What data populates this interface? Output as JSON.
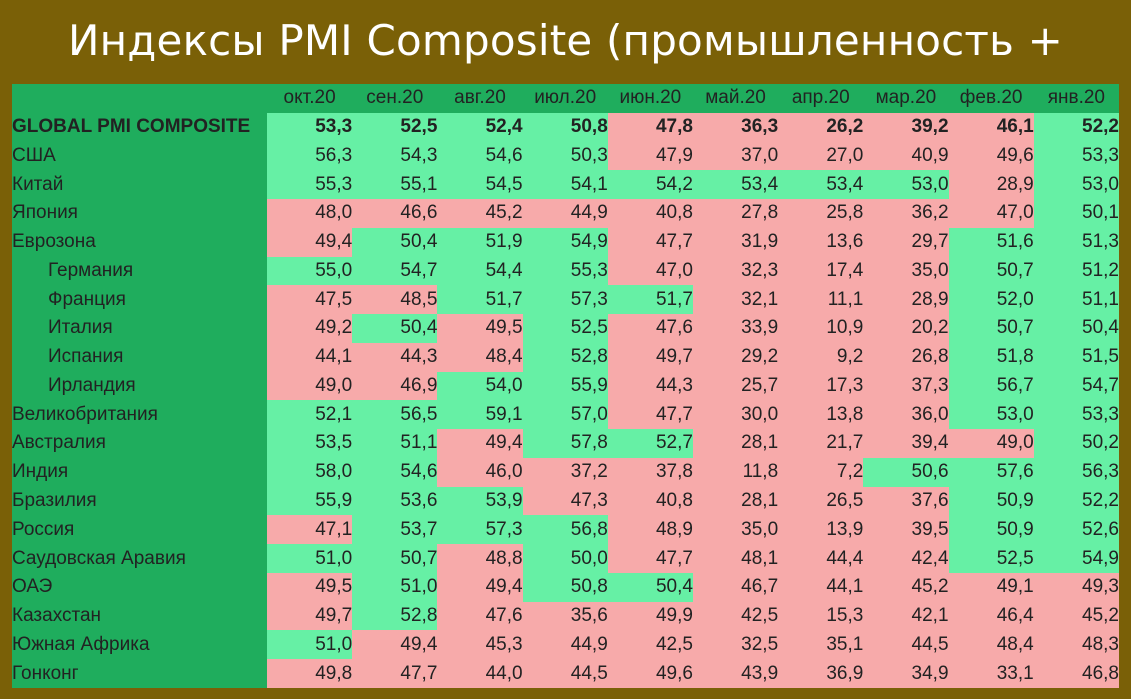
{
  "title": "Индексы PMI Composite (промышленность + услуги)",
  "colors": {
    "frame": "#7a6007",
    "header_green": "#1fad5d",
    "above_50": "#66f0a5",
    "below_50": "#f7aaaa",
    "title_text": "#ffffff"
  },
  "chart_data": {
    "type": "table",
    "title": "Индексы PMI Composite (промышленность + услуги)",
    "columns": [
      "окт.20",
      "сен.20",
      "авг.20",
      "июл.20",
      "июн.20",
      "май.20",
      "апр.20",
      "мар.20",
      "фев.20",
      "янв.20"
    ],
    "threshold": 50,
    "rows": [
      {
        "name": "GLOBAL PMI COMPOSITE",
        "indent": false,
        "bold": true,
        "values": [
          "53,3",
          "52,5",
          "52,4",
          "50,8",
          "47,8",
          "36,3",
          "26,2",
          "39,2",
          "46,1",
          "52,2"
        ]
      },
      {
        "name": "США",
        "indent": false,
        "bold": false,
        "values": [
          "56,3",
          "54,3",
          "54,6",
          "50,3",
          "47,9",
          "37,0",
          "27,0",
          "40,9",
          "49,6",
          "53,3"
        ]
      },
      {
        "name": "Китай",
        "indent": false,
        "bold": false,
        "values": [
          "55,3",
          "55,1",
          "54,5",
          "54,1",
          "54,2",
          "53,4",
          "53,4",
          "53,0",
          "28,9",
          "53,0"
        ]
      },
      {
        "name": "Япония",
        "indent": false,
        "bold": false,
        "values": [
          "48,0",
          "46,6",
          "45,2",
          "44,9",
          "40,8",
          "27,8",
          "25,8",
          "36,2",
          "47,0",
          "50,1"
        ]
      },
      {
        "name": "Еврозона",
        "indent": false,
        "bold": false,
        "values": [
          "49,4",
          "50,4",
          "51,9",
          "54,9",
          "47,7",
          "31,9",
          "13,6",
          "29,7",
          "51,6",
          "51,3"
        ]
      },
      {
        "name": "Германия",
        "indent": true,
        "bold": false,
        "values": [
          "55,0",
          "54,7",
          "54,4",
          "55,3",
          "47,0",
          "32,3",
          "17,4",
          "35,0",
          "50,7",
          "51,2"
        ]
      },
      {
        "name": "Франция",
        "indent": true,
        "bold": false,
        "values": [
          "47,5",
          "48,5",
          "51,7",
          "57,3",
          "51,7",
          "32,1",
          "11,1",
          "28,9",
          "52,0",
          "51,1"
        ]
      },
      {
        "name": "Италия",
        "indent": true,
        "bold": false,
        "values": [
          "49,2",
          "50,4",
          "49,5",
          "52,5",
          "47,6",
          "33,9",
          "10,9",
          "20,2",
          "50,7",
          "50,4"
        ]
      },
      {
        "name": "Испания",
        "indent": true,
        "bold": false,
        "values": [
          "44,1",
          "44,3",
          "48,4",
          "52,8",
          "49,7",
          "29,2",
          "9,2",
          "26,8",
          "51,8",
          "51,5"
        ]
      },
      {
        "name": "Ирландия",
        "indent": true,
        "bold": false,
        "values": [
          "49,0",
          "46,9",
          "54,0",
          "55,9",
          "44,3",
          "25,7",
          "17,3",
          "37,3",
          "56,7",
          "54,7"
        ]
      },
      {
        "name": "Великобритания",
        "indent": false,
        "bold": false,
        "values": [
          "52,1",
          "56,5",
          "59,1",
          "57,0",
          "47,7",
          "30,0",
          "13,8",
          "36,0",
          "53,0",
          "53,3"
        ]
      },
      {
        "name": "Австралия",
        "indent": false,
        "bold": false,
        "values": [
          "53,5",
          "51,1",
          "49,4",
          "57,8",
          "52,7",
          "28,1",
          "21,7",
          "39,4",
          "49,0",
          "50,2"
        ]
      },
      {
        "name": "Индия",
        "indent": false,
        "bold": false,
        "values": [
          "58,0",
          "54,6",
          "46,0",
          "37,2",
          "37,8",
          "11,8",
          "7,2",
          "50,6",
          "57,6",
          "56,3"
        ]
      },
      {
        "name": "Бразилия",
        "indent": false,
        "bold": false,
        "values": [
          "55,9",
          "53,6",
          "53,9",
          "47,3",
          "40,8",
          "28,1",
          "26,5",
          "37,6",
          "50,9",
          "52,2"
        ]
      },
      {
        "name": "Россия",
        "indent": false,
        "bold": false,
        "values": [
          "47,1",
          "53,7",
          "57,3",
          "56,8",
          "48,9",
          "35,0",
          "13,9",
          "39,5",
          "50,9",
          "52,6"
        ]
      },
      {
        "name": "Саудовская Аравия",
        "indent": false,
        "bold": false,
        "values": [
          "51,0",
          "50,7",
          "48,8",
          "50,0",
          "47,7",
          "48,1",
          "44,4",
          "42,4",
          "52,5",
          "54,9"
        ]
      },
      {
        "name": "ОАЭ",
        "indent": false,
        "bold": false,
        "values": [
          "49,5",
          "51,0",
          "49,4",
          "50,8",
          "50,4",
          "46,7",
          "44,1",
          "45,2",
          "49,1",
          "49,3"
        ]
      },
      {
        "name": "Казахстан",
        "indent": false,
        "bold": false,
        "values": [
          "49,7",
          "52,8",
          "47,6",
          "35,6",
          "49,9",
          "42,5",
          "15,3",
          "42,1",
          "46,4",
          "45,2"
        ]
      },
      {
        "name": "Южная Африка",
        "indent": false,
        "bold": false,
        "values": [
          "51,0",
          "49,4",
          "45,3",
          "44,9",
          "42,5",
          "32,5",
          "35,1",
          "44,5",
          "48,4",
          "48,3"
        ]
      },
      {
        "name": "Гонконг",
        "indent": false,
        "bold": false,
        "values": [
          "49,8",
          "47,7",
          "44,0",
          "44,5",
          "49,6",
          "43,9",
          "36,9",
          "34,9",
          "33,1",
          "46,8"
        ]
      }
    ]
  }
}
